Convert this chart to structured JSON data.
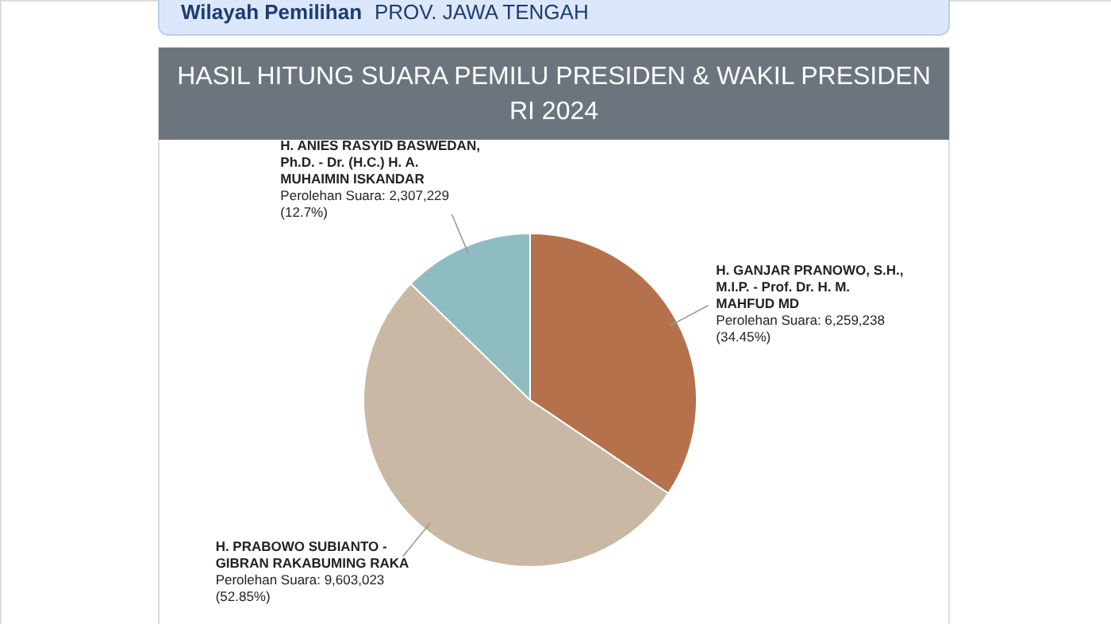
{
  "chart_data": {
    "type": "pie",
    "title": "HASIL HITUNG SUARA PEMILU PRESIDEN & WAKIL PRESIDEN RI 2024",
    "annotations": [
      "Wilayah Pemilihan",
      "PROV. JAWA TENGAH"
    ],
    "categories": [
      "H. GANJAR PRANOWO, S.H., M.I.P. - Prof. Dr. H. M. MAHFUD MD",
      "H. PRABOWO SUBIANTO - GIBRAN RAKABUMING RAKA",
      "H. ANIES RASYID BASWEDAN, Ph.D. - Dr. (H.C.) H. A. MUHAIMIN ISKANDAR"
    ],
    "values": [
      6259238,
      9603023,
      2307229
    ],
    "colors": [
      "#b5714c",
      "#c9b8a3",
      "#8fbcc0"
    ],
    "value_labels": [
      "Perolehan Suara: 6,259,238 (34.45%)",
      "Perolehan Suara: 9,603,023 (52.85%)",
      "Perolehan Suara: 2,307,229 (12.7%)"
    ]
  }
}
